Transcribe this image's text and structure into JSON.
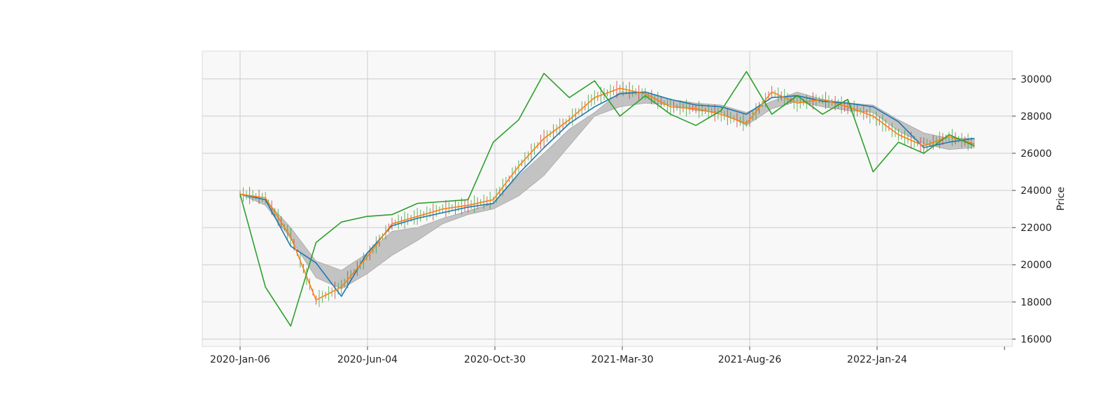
{
  "chart_data": {
    "type": "line",
    "title": "",
    "xlabel": "",
    "ylabel": "Price",
    "ylim": [
      15600,
      31500
    ],
    "grid": true,
    "legend": "none",
    "x_tick_labels": [
      "2020-Jan-06",
      "2020-Jun-04",
      "2020-Oct-30",
      "2021-Mar-30",
      "2021-Aug-26",
      "2022-Jan-24",
      ""
    ],
    "y_ticks": [
      16000,
      18000,
      20000,
      22000,
      24000,
      26000,
      28000,
      30000
    ],
    "x": [
      "2020-01-06",
      "2020-02-05",
      "2020-03-06",
      "2020-04-05",
      "2020-05-05",
      "2020-06-04",
      "2020-07-04",
      "2020-08-03",
      "2020-09-02",
      "2020-10-02",
      "2020-10-30",
      "2020-11-29",
      "2020-12-29",
      "2021-01-28",
      "2021-02-27",
      "2021-03-30",
      "2021-04-29",
      "2021-05-29",
      "2021-06-28",
      "2021-07-28",
      "2021-08-26",
      "2021-09-25",
      "2021-10-25",
      "2021-11-24",
      "2021-12-24",
      "2022-01-24",
      "2022-02-23",
      "2022-03-25",
      "2022-04-24",
      "2022-05-24"
    ],
    "series": [
      {
        "values": [
          23800,
          23500,
          21000,
          20100,
          18300,
          20600,
          22100,
          22500,
          22800,
          23100,
          23300,
          24900,
          26300,
          27600,
          28500,
          29200,
          29300,
          28900,
          28600,
          28500,
          28100,
          29000,
          29100,
          28800,
          28700,
          28500,
          27700,
          26300,
          26600,
          26800
        ],
        "color": "#1f77b4"
      },
      {
        "values": [
          23800,
          23600,
          21500,
          18100,
          18800,
          20400,
          22200,
          22600,
          23000,
          23200,
          23500,
          25300,
          26800,
          27800,
          29000,
          29500,
          29200,
          28500,
          28400,
          28100,
          27600,
          29300,
          28700,
          28900,
          28500,
          28000,
          27000,
          26400,
          26900,
          26500
        ],
        "color": "#ff7f0e"
      },
      {
        "values": [
          23800,
          18800,
          16700,
          21200,
          22300,
          22600,
          22700,
          23300,
          23400,
          23500,
          26600,
          27800,
          30300,
          29000,
          29900,
          28000,
          29100,
          28100,
          27500,
          28300,
          30400,
          28100,
          29100,
          28100,
          28900,
          25000,
          26600,
          26000,
          27000,
          26400
        ],
        "color": "#2ca02c"
      }
    ],
    "cloud": {
      "upper": [
        23800,
        23500,
        22000,
        20200,
        19700,
        20600,
        21800,
        22000,
        22500,
        22900,
        23300,
        24800,
        26000,
        27300,
        28200,
        29300,
        29300,
        28900,
        28700,
        28600,
        28200,
        28800,
        29300,
        28900,
        28700,
        28600,
        27800,
        27100,
        26800,
        26800
      ],
      "lower": [
        23800,
        23200,
        21400,
        19300,
        18700,
        19500,
        20500,
        21300,
        22200,
        22700,
        23000,
        23700,
        24800,
        26400,
        28000,
        28500,
        28700,
        28600,
        28300,
        28200,
        27500,
        28400,
        28800,
        28500,
        28300,
        28200,
        27200,
        26500,
        26200,
        26300
      ],
      "color": "#bdbdbd"
    },
    "candles": {
      "up_color": "#2ca02c",
      "down_color": "#d62728"
    }
  }
}
